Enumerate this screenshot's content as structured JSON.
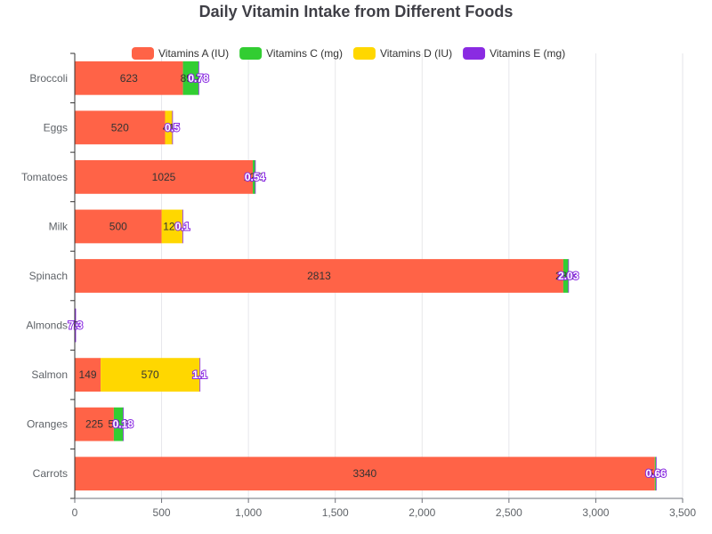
{
  "chart_data": {
    "type": "bar",
    "orientation": "horizontal",
    "stacked": true,
    "title": "Daily Vitamin Intake from Different Foods",
    "categories": [
      "Broccoli",
      "Eggs",
      "Tomatoes",
      "Milk",
      "Spinach",
      "Almonds",
      "Salmon",
      "Oranges",
      "Carrots"
    ],
    "series": [
      {
        "name": "Vitamins A (IU)",
        "color": "#FF6347",
        "values": [
          623,
          520,
          1025,
          500,
          2813,
          0,
          149,
          225,
          3340
        ],
        "labels": [
          "623",
          "520",
          "1025",
          "500",
          "2813",
          "0",
          "149",
          "225",
          "3340"
        ]
      },
      {
        "name": "Vitamins C (mg)",
        "color": "#32CD32",
        "values": [
          89.2,
          0,
          12.7,
          0,
          28.1,
          0,
          0,
          53.2,
          5.9
        ],
        "labels": [
          "89.2",
          "0",
          "12.7",
          "0",
          "28.1",
          "0",
          "0",
          "53.2",
          "5.9"
        ]
      },
      {
        "name": "Vitamins D (IU)",
        "color": "#FFD700",
        "values": [
          0,
          41,
          0,
          120,
          0,
          0,
          570,
          0,
          0
        ],
        "labels": [
          "0",
          "41",
          "0",
          "120",
          "0",
          "0",
          "570",
          "0",
          "0"
        ]
      },
      {
        "name": "Vitamins E (mg)",
        "color": "#8A2BE2",
        "values": [
          0.78,
          0.5,
          0.54,
          0.1,
          2.03,
          7.3,
          1.1,
          0.18,
          0.66
        ],
        "labels": [
          "0.78",
          "0.5",
          "0.54",
          "0.1",
          "2.03",
          "7.3",
          "1.1",
          "0.18",
          "0.66"
        ]
      }
    ],
    "xlim": [
      0,
      3500
    ],
    "x_ticks": [
      "0",
      "500",
      "1,000",
      "1,500",
      "2,000",
      "2,500",
      "3,000",
      "3,500"
    ],
    "xlabel": "",
    "ylabel": "",
    "grid": "vertical",
    "legend_position": "top-center"
  }
}
